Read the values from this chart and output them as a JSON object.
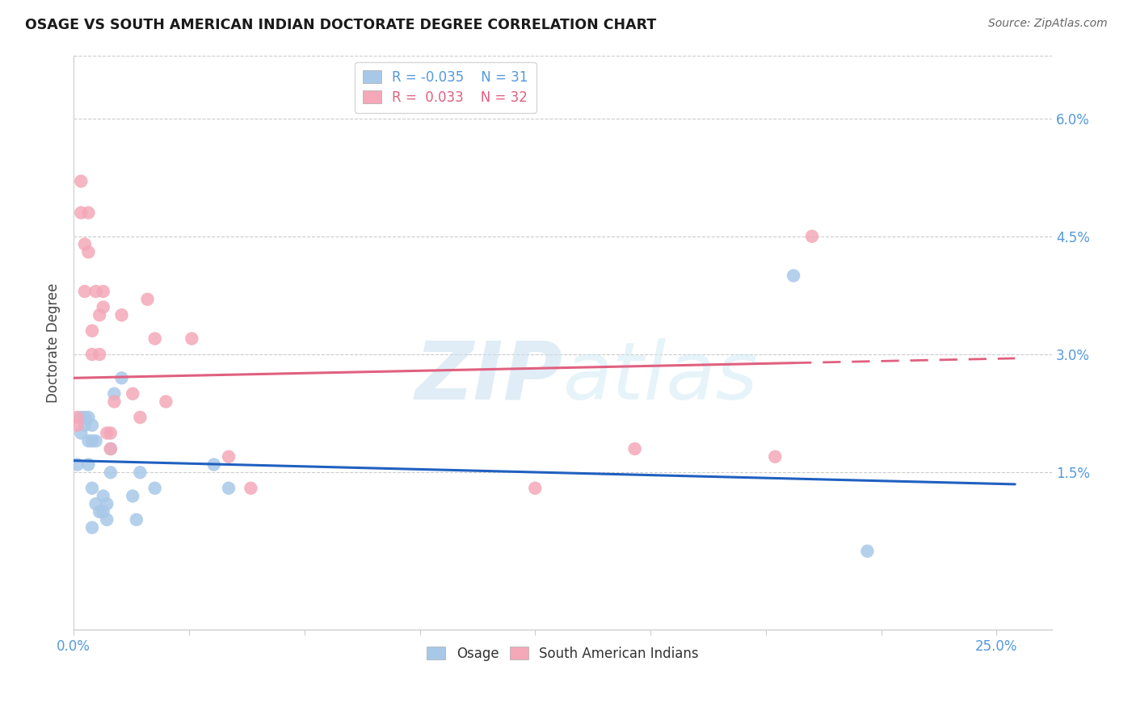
{
  "title": "OSAGE VS SOUTH AMERICAN INDIAN DOCTORATE DEGREE CORRELATION CHART",
  "source": "Source: ZipAtlas.com",
  "ylabel": "Doctorate Degree",
  "xlim": [
    0.0,
    0.265
  ],
  "ylim": [
    -0.005,
    0.068
  ],
  "ytick_vals": [
    0.0,
    0.015,
    0.03,
    0.045,
    0.06
  ],
  "ytick_labels": [
    "",
    "1.5%",
    "3.0%",
    "4.5%",
    "6.0%"
  ],
  "xtick_vals": [
    0.0,
    0.03125,
    0.0625,
    0.09375,
    0.125,
    0.15625,
    0.1875,
    0.21875,
    0.25
  ],
  "legend_blue_r": "-0.035",
  "legend_blue_n": "31",
  "legend_pink_r": "0.033",
  "legend_pink_n": "32",
  "osage_color": "#a8c8e8",
  "sai_color": "#f4a8b8",
  "trend_blue_color": "#2060c0",
  "trend_pink_color": "#e06080",
  "watermark_color": "#ddeef8",
  "osage_x": [
    0.001,
    0.002,
    0.002,
    0.003,
    0.003,
    0.004,
    0.004,
    0.004,
    0.005,
    0.005,
    0.005,
    0.005,
    0.006,
    0.006,
    0.007,
    0.008,
    0.008,
    0.009,
    0.009,
    0.01,
    0.01,
    0.011,
    0.013,
    0.016,
    0.017,
    0.018,
    0.022,
    0.038,
    0.042,
    0.195,
    0.215
  ],
  "osage_y": [
    0.016,
    0.022,
    0.02,
    0.022,
    0.021,
    0.019,
    0.022,
    0.016,
    0.021,
    0.019,
    0.013,
    0.008,
    0.011,
    0.019,
    0.01,
    0.01,
    0.012,
    0.011,
    0.009,
    0.018,
    0.015,
    0.025,
    0.027,
    0.012,
    0.009,
    0.015,
    0.013,
    0.016,
    0.013,
    0.04,
    0.005
  ],
  "sai_x": [
    0.001,
    0.001,
    0.002,
    0.002,
    0.003,
    0.003,
    0.004,
    0.004,
    0.005,
    0.005,
    0.006,
    0.007,
    0.007,
    0.008,
    0.008,
    0.009,
    0.01,
    0.01,
    0.011,
    0.013,
    0.016,
    0.018,
    0.02,
    0.022,
    0.025,
    0.032,
    0.042,
    0.048,
    0.125,
    0.152,
    0.19,
    0.2
  ],
  "sai_y": [
    0.022,
    0.021,
    0.052,
    0.048,
    0.044,
    0.038,
    0.048,
    0.043,
    0.033,
    0.03,
    0.038,
    0.035,
    0.03,
    0.038,
    0.036,
    0.02,
    0.02,
    0.018,
    0.024,
    0.035,
    0.025,
    0.022,
    0.037,
    0.032,
    0.024,
    0.032,
    0.017,
    0.013,
    0.013,
    0.018,
    0.017,
    0.045
  ],
  "trend_blue_x0": 0.0,
  "trend_blue_x1": 0.255,
  "trend_blue_y0": 0.0165,
  "trend_blue_y1": 0.0135,
  "trend_pink_x0": 0.0,
  "trend_pink_x1": 0.255,
  "trend_pink_y0": 0.027,
  "trend_pink_y1": 0.0295,
  "trend_pink_solid_end": 0.195,
  "grid_color": "#cccccc",
  "tick_label_color": "#5599dd",
  "spine_color": "#cccccc"
}
